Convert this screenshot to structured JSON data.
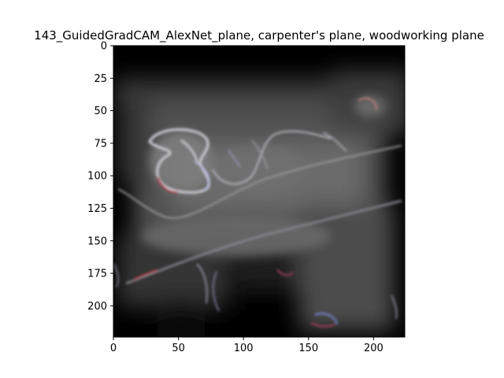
{
  "chart_data": {
    "type": "heatmap",
    "title": "143_GuidedGradCAM_AlexNet_plane, carpenter's plane, woodworking plane",
    "xlabel": "",
    "ylabel": "",
    "xlim": [
      0,
      224
    ],
    "ylim": [
      224,
      0
    ],
    "x_ticks": [
      0,
      50,
      100,
      150,
      200
    ],
    "y_ticks": [
      0,
      25,
      50,
      75,
      100,
      125,
      150,
      175,
      200
    ],
    "grid": false,
    "image": {
      "width": 224,
      "height": 224,
      "description_colors": {
        "background": "#000000",
        "haze": "#808080",
        "highlight": "#d8d8e0",
        "fringe_red": "#b03040",
        "fringe_blue": "#4050c0"
      }
    }
  }
}
